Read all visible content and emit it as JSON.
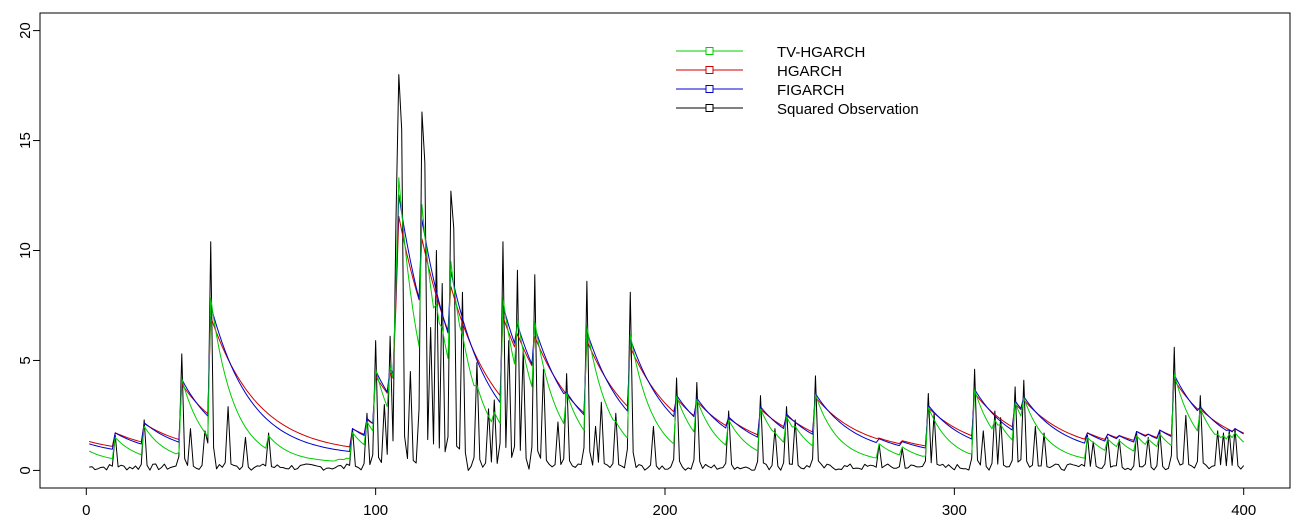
{
  "chart_data": {
    "type": "line",
    "title": "",
    "xlabel": "",
    "ylabel": "",
    "xlim": [
      -16,
      416
    ],
    "ylim": [
      -0.8,
      20.8
    ],
    "x_ticks": [
      0,
      100,
      200,
      300,
      400
    ],
    "y_ticks": [
      0,
      5,
      10,
      15,
      20
    ],
    "x_tick_labels": [
      "0",
      "100",
      "200",
      "300",
      "400"
    ],
    "y_tick_labels": [
      "0",
      "5",
      "10",
      "15",
      "20"
    ],
    "grid": false,
    "legend_position": "top-right",
    "legend": [
      {
        "label": "TV-HGARCH",
        "color": "#00cc00"
      },
      {
        "label": "HGARCH",
        "color": "#cc0000"
      },
      {
        "label": "FIGARCH",
        "color": "#0000cc"
      },
      {
        "label": "Squared Observation",
        "color": "#000000"
      }
    ],
    "n_points": 400,
    "baseline": {
      "Squared Observation": 0.2,
      "TV-HGARCH": 0.35,
      "HGARCH": 0.75,
      "FIGARCH": 0.65
    },
    "decay": {
      "TV-HGARCH": 0.88,
      "HGARCH": 0.94,
      "FIGARCH": 0.93
    },
    "peak_ratio": {
      "TV-HGARCH": 0.72,
      "HGARCH": 0.6,
      "FIGARCH": 0.66
    },
    "peaks": [
      [
        10,
        1.6
      ],
      [
        20,
        2.3
      ],
      [
        33,
        5.3
      ],
      [
        36,
        1.9
      ],
      [
        41,
        1.8
      ],
      [
        43,
        10.4
      ],
      [
        49,
        2.9
      ],
      [
        55,
        1.5
      ],
      [
        63,
        1.7
      ],
      [
        92,
        1.9
      ],
      [
        97,
        2.6
      ],
      [
        100,
        5.9
      ],
      [
        103,
        3.0
      ],
      [
        105,
        6.1
      ],
      [
        107,
        11.2
      ],
      [
        108,
        18.0
      ],
      [
        109,
        15.5
      ],
      [
        112,
        4.5
      ],
      [
        115,
        2.8
      ],
      [
        116,
        16.3
      ],
      [
        117,
        14.0
      ],
      [
        119,
        6.5
      ],
      [
        121,
        10.0
      ],
      [
        123,
        8.5
      ],
      [
        126,
        12.7
      ],
      [
        127,
        11.0
      ],
      [
        130,
        8.1
      ],
      [
        135,
        4.9
      ],
      [
        139,
        2.8
      ],
      [
        141,
        3.2
      ],
      [
        144,
        10.4
      ],
      [
        146,
        5.9
      ],
      [
        149,
        9.1
      ],
      [
        151,
        5.5
      ],
      [
        155,
        8.9
      ],
      [
        158,
        4.6
      ],
      [
        163,
        2.2
      ],
      [
        166,
        4.4
      ],
      [
        173,
        8.6
      ],
      [
        176,
        2.0
      ],
      [
        178,
        3.1
      ],
      [
        183,
        2.6
      ],
      [
        188,
        8.1
      ],
      [
        196,
        2.0
      ],
      [
        204,
        4.2
      ],
      [
        211,
        4.0
      ],
      [
        222,
        2.7
      ],
      [
        233,
        3.4
      ],
      [
        238,
        1.9
      ],
      [
        242,
        2.9
      ],
      [
        245,
        2.3
      ],
      [
        252,
        4.3
      ],
      [
        274,
        1.2
      ],
      [
        282,
        1.0
      ],
      [
        291,
        3.5
      ],
      [
        293,
        2.6
      ],
      [
        307,
        4.6
      ],
      [
        310,
        1.8
      ],
      [
        314,
        2.7
      ],
      [
        316,
        2.4
      ],
      [
        321,
        3.8
      ],
      [
        324,
        4.1
      ],
      [
        328,
        2.0
      ],
      [
        331,
        1.7
      ],
      [
        346,
        1.6
      ],
      [
        348,
        1.3
      ],
      [
        353,
        1.5
      ],
      [
        357,
        1.4
      ],
      [
        363,
        1.7
      ],
      [
        367,
        1.5
      ],
      [
        371,
        1.8
      ],
      [
        376,
        5.6
      ],
      [
        380,
        2.5
      ],
      [
        385,
        3.4
      ],
      [
        391,
        1.8
      ],
      [
        393,
        1.7
      ],
      [
        395,
        1.8
      ],
      [
        397,
        1.9
      ]
    ]
  }
}
